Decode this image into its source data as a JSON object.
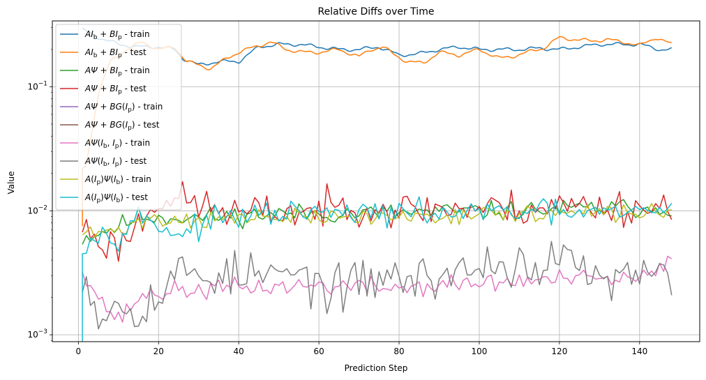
{
  "chart_data": {
    "type": "line",
    "title": "Relative Diffs over Time",
    "xlabel": "Prediction Step",
    "ylabel": "Value",
    "yscale": "log",
    "xlim": [
      -6.5,
      155
    ],
    "ylim": [
      0.00088,
      0.34
    ],
    "xticks": [
      0,
      20,
      40,
      60,
      80,
      100,
      120,
      140
    ],
    "xtick_labels": [
      "0",
      "20",
      "40",
      "60",
      "80",
      "100",
      "120",
      "140"
    ],
    "yticks": [
      0.001,
      0.01,
      0.1
    ],
    "ytick_labels": [
      {
        "base": "10",
        "exp": "−3"
      },
      {
        "base": "10",
        "exp": "−2"
      },
      {
        "base": "10",
        "exp": "−1"
      }
    ],
    "grid": true,
    "legend_position": "upper-left",
    "x_first": 1,
    "x_last": 148,
    "series": [
      {
        "name": "AI_b + BI_p - train",
        "legend": [
          {
            "t": "A",
            "i": true
          },
          {
            "t": "I",
            "i": true
          },
          {
            "t": "b",
            "sub": true
          },
          {
            "t": " + "
          },
          {
            "t": "B",
            "i": true
          },
          {
            "t": "I",
            "i": true
          },
          {
            "t": "p",
            "sub": true
          },
          {
            "t": " - train"
          }
        ],
        "color": "#1f77b4",
        "kind": "smooth",
        "keys": [
          [
            1,
            0.29
          ],
          [
            5,
            0.25
          ],
          [
            10,
            0.22
          ],
          [
            15,
            0.21
          ],
          [
            20,
            0.21
          ],
          [
            24,
            0.2
          ],
          [
            26,
            0.17
          ],
          [
            30,
            0.15
          ],
          [
            35,
            0.16
          ],
          [
            40,
            0.16
          ],
          [
            45,
            0.21
          ],
          [
            50,
            0.22
          ],
          [
            55,
            0.22
          ],
          [
            60,
            0.21
          ],
          [
            65,
            0.2
          ],
          [
            70,
            0.2
          ],
          [
            75,
            0.21
          ],
          [
            80,
            0.18
          ],
          [
            85,
            0.185
          ],
          [
            90,
            0.2
          ],
          [
            95,
            0.21
          ],
          [
            100,
            0.2
          ],
          [
            105,
            0.2
          ],
          [
            110,
            0.2
          ],
          [
            115,
            0.205
          ],
          [
            120,
            0.2
          ],
          [
            125,
            0.21
          ],
          [
            130,
            0.22
          ],
          [
            135,
            0.22
          ],
          [
            140,
            0.22
          ],
          [
            145,
            0.2
          ],
          [
            148,
            0.2
          ]
        ]
      },
      {
        "name": "AI_b + BI_p - test",
        "legend": [
          {
            "t": "A",
            "i": true
          },
          {
            "t": "I",
            "i": true
          },
          {
            "t": "b",
            "sub": true
          },
          {
            "t": " + "
          },
          {
            "t": "B",
            "i": true
          },
          {
            "t": "I",
            "i": true
          },
          {
            "t": "p",
            "sub": true
          },
          {
            "t": " - test"
          }
        ],
        "color": "#ff7f0e",
        "kind": "smooth",
        "keys": [
          [
            1,
            0.021
          ],
          [
            2,
            0.024
          ],
          [
            5,
            0.09
          ],
          [
            8,
            0.16
          ],
          [
            12,
            0.2
          ],
          [
            16,
            0.23
          ],
          [
            20,
            0.2
          ],
          [
            24,
            0.21
          ],
          [
            27,
            0.16
          ],
          [
            30,
            0.15
          ],
          [
            33,
            0.14
          ],
          [
            37,
            0.17
          ],
          [
            40,
            0.19
          ],
          [
            44,
            0.21
          ],
          [
            48,
            0.23
          ],
          [
            52,
            0.2
          ],
          [
            56,
            0.19
          ],
          [
            60,
            0.19
          ],
          [
            65,
            0.2
          ],
          [
            70,
            0.175
          ],
          [
            73,
            0.2
          ],
          [
            76,
            0.21
          ],
          [
            79,
            0.18
          ],
          [
            82,
            0.16
          ],
          [
            86,
            0.155
          ],
          [
            90,
            0.19
          ],
          [
            95,
            0.18
          ],
          [
            100,
            0.2
          ],
          [
            105,
            0.17
          ],
          [
            108,
            0.175
          ],
          [
            112,
            0.19
          ],
          [
            116,
            0.205
          ],
          [
            120,
            0.25
          ],
          [
            124,
            0.24
          ],
          [
            128,
            0.235
          ],
          [
            132,
            0.24
          ],
          [
            136,
            0.23
          ],
          [
            140,
            0.215
          ],
          [
            144,
            0.25
          ],
          [
            148,
            0.22
          ]
        ]
      },
      {
        "name": "AΨ + BI_p - train",
        "legend": [
          {
            "t": "AΨ",
            "i": true
          },
          {
            "t": " + "
          },
          {
            "t": "B",
            "i": true
          },
          {
            "t": "I",
            "i": true
          },
          {
            "t": "p",
            "sub": true
          },
          {
            "t": " - train"
          }
        ],
        "color": "#2ca02c",
        "kind": "noisy",
        "seed": 11,
        "amp": 0.09,
        "keys": [
          [
            1,
            0.006
          ],
          [
            10,
            0.0075
          ],
          [
            15,
            0.009
          ],
          [
            30,
            0.0088
          ],
          [
            50,
            0.0095
          ],
          [
            70,
            0.0095
          ],
          [
            90,
            0.0098
          ],
          [
            110,
            0.01
          ],
          [
            130,
            0.0105
          ],
          [
            148,
            0.0106
          ]
        ]
      },
      {
        "name": "AΨ + BI_p - test",
        "legend": [
          {
            "t": "AΨ",
            "i": true
          },
          {
            "t": " + "
          },
          {
            "t": "B",
            "i": true
          },
          {
            "t": "I",
            "i": true
          },
          {
            "t": "p",
            "sub": true
          },
          {
            "t": " - test"
          }
        ],
        "color": "#d62728",
        "kind": "noisy",
        "seed": 23,
        "amp": 0.17,
        "keys": [
          [
            1,
            0.0075
          ],
          [
            6,
            0.0055
          ],
          [
            10,
            0.0052
          ],
          [
            16,
            0.0085
          ],
          [
            20,
            0.013
          ],
          [
            26,
            0.012
          ],
          [
            40,
            0.0095
          ],
          [
            60,
            0.01
          ],
          [
            70,
            0.0115
          ],
          [
            80,
            0.01
          ],
          [
            90,
            0.0105
          ],
          [
            110,
            0.0105
          ],
          [
            120,
            0.011
          ],
          [
            148,
            0.0105
          ]
        ]
      },
      {
        "name": "AΨ + BG(I_p) - train",
        "legend": [
          {
            "t": "AΨ",
            "i": true
          },
          {
            "t": " + "
          },
          {
            "t": "BG",
            "i": true
          },
          {
            "t": "("
          },
          {
            "t": "I",
            "i": true
          },
          {
            "t": "p",
            "sub": true
          },
          {
            "t": ") - train"
          }
        ],
        "color": "#9467bd",
        "kind": "hidden",
        "keys": []
      },
      {
        "name": "AΨ + BG(I_p) - test",
        "legend": [
          {
            "t": "AΨ",
            "i": true
          },
          {
            "t": " + "
          },
          {
            "t": "BG",
            "i": true
          },
          {
            "t": "("
          },
          {
            "t": "I",
            "i": true
          },
          {
            "t": "p",
            "sub": true
          },
          {
            "t": ") - test"
          }
        ],
        "color": "#8c564b",
        "kind": "hidden",
        "keys": []
      },
      {
        "name": "AΨ(I_b, I_p) - train",
        "legend": [
          {
            "t": "AΨ",
            "i": true
          },
          {
            "t": "("
          },
          {
            "t": "I",
            "i": true
          },
          {
            "t": "b",
            "sub": true
          },
          {
            "t": ", "
          },
          {
            "t": "I",
            "i": true
          },
          {
            "t": "p",
            "sub": true
          },
          {
            "t": ") - train"
          }
        ],
        "color": "#e377c2",
        "kind": "noisy",
        "seed": 37,
        "amp": 0.09,
        "keys": [
          [
            1,
            0.0035
          ],
          [
            5,
            0.002
          ],
          [
            10,
            0.0013
          ],
          [
            15,
            0.002
          ],
          [
            20,
            0.0022
          ],
          [
            40,
            0.0024
          ],
          [
            60,
            0.0025
          ],
          [
            80,
            0.0024
          ],
          [
            100,
            0.0026
          ],
          [
            120,
            0.0028
          ],
          [
            140,
            0.0028
          ],
          [
            146,
            0.0034
          ],
          [
            148,
            0.004
          ]
        ]
      },
      {
        "name": "AΨ(I_b, I_p) - test",
        "legend": [
          {
            "t": "AΨ",
            "i": true
          },
          {
            "t": "("
          },
          {
            "t": "I",
            "i": true
          },
          {
            "t": "b",
            "sub": true
          },
          {
            "t": ", "
          },
          {
            "t": "I",
            "i": true
          },
          {
            "t": "p",
            "sub": true
          },
          {
            "t": ") - test"
          }
        ],
        "color": "#7f7f7f",
        "kind": "noisy",
        "seed": 53,
        "amp": 0.22,
        "keys": [
          [
            1,
            0.0035
          ],
          [
            5,
            0.0015
          ],
          [
            10,
            0.0018
          ],
          [
            15,
            0.0017
          ],
          [
            20,
            0.002
          ],
          [
            25,
            0.0032
          ],
          [
            40,
            0.003
          ],
          [
            55,
            0.003
          ],
          [
            65,
            0.0022
          ],
          [
            75,
            0.003
          ],
          [
            85,
            0.0028
          ],
          [
            95,
            0.0032
          ],
          [
            105,
            0.0038
          ],
          [
            115,
            0.0035
          ],
          [
            125,
            0.004
          ],
          [
            130,
            0.0025
          ],
          [
            140,
            0.003
          ],
          [
            148,
            0.0027
          ]
        ]
      },
      {
        "name": "A(I_p)Ψ(I_b) - train",
        "legend": [
          {
            "t": "A",
            "i": true
          },
          {
            "t": "("
          },
          {
            "t": "I",
            "i": true
          },
          {
            "t": "p",
            "sub": true
          },
          {
            "t": ")"
          },
          {
            "t": "Ψ",
            "i": true
          },
          {
            "t": "("
          },
          {
            "t": "I",
            "i": true
          },
          {
            "t": "b",
            "sub": true
          },
          {
            "t": ") - train"
          }
        ],
        "color": "#bcbd22",
        "kind": "noisy",
        "seed": 71,
        "amp": 0.08,
        "keys": [
          [
            1,
            0.0065
          ],
          [
            10,
            0.0068
          ],
          [
            15,
            0.0085
          ],
          [
            30,
            0.0085
          ],
          [
            50,
            0.0088
          ],
          [
            70,
            0.0088
          ],
          [
            90,
            0.0092
          ],
          [
            110,
            0.0095
          ],
          [
            130,
            0.0095
          ],
          [
            148,
            0.0098
          ]
        ]
      },
      {
        "name": "A(I_p)Ψ(I_b) - test",
        "legend": [
          {
            "t": "A",
            "i": true
          },
          {
            "t": "("
          },
          {
            "t": "I",
            "i": true
          },
          {
            "t": "p",
            "sub": true
          },
          {
            "t": ")"
          },
          {
            "t": "Ψ",
            "i": true
          },
          {
            "t": "("
          },
          {
            "t": "I",
            "i": true
          },
          {
            "t": "b",
            "sub": true
          },
          {
            "t": ") - test"
          }
        ],
        "color": "#17becf",
        "kind": "noisy",
        "seed": 97,
        "amp": 0.11,
        "drop": 0.0008,
        "keys": [
          [
            1,
            0.0055
          ],
          [
            5,
            0.0065
          ],
          [
            10,
            0.0065
          ],
          [
            15,
            0.009
          ],
          [
            25,
            0.0065
          ],
          [
            35,
            0.0085
          ],
          [
            50,
            0.0095
          ],
          [
            70,
            0.0095
          ],
          [
            90,
            0.0095
          ],
          [
            110,
            0.0098
          ],
          [
            130,
            0.0095
          ],
          [
            140,
            0.0095
          ],
          [
            148,
            0.011
          ]
        ]
      }
    ]
  }
}
